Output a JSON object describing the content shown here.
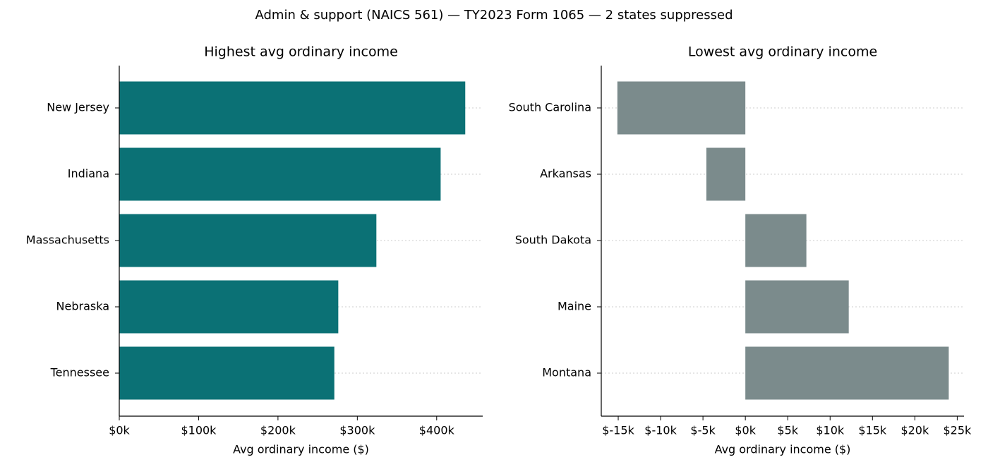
{
  "title": "Admin & support (NAICS 561) — TY2023 Form 1065 — 2 states suppressed",
  "chart_data": [
    {
      "type": "barh",
      "title": "Highest avg ordinary income",
      "xlabel": "Avg ordinary income ($)",
      "categories": [
        "New Jersey",
        "Indiana",
        "Massachusetts",
        "Nebraska",
        "Tennessee"
      ],
      "values": [
        436000,
        405000,
        324000,
        276000,
        271000
      ],
      "color": "#0b7175",
      "xlim": [
        0,
        458000
      ],
      "xticks": [
        {
          "value": 0,
          "label": "$0k"
        },
        {
          "value": 100000,
          "label": "$100k"
        },
        {
          "value": 200000,
          "label": "$200k"
        },
        {
          "value": 300000,
          "label": "$300k"
        },
        {
          "value": 400000,
          "label": "$400k"
        }
      ],
      "grid": true
    },
    {
      "type": "barh",
      "title": "Lowest avg ordinary income",
      "xlabel": "Avg ordinary income ($)",
      "categories": [
        "South Carolina",
        "Arkansas",
        "South Dakota",
        "Maine",
        "Montana"
      ],
      "values": [
        -15100,
        -4600,
        7200,
        12200,
        24000
      ],
      "color": "#7b8b8c",
      "xlim": [
        -17000,
        25800
      ],
      "xticks": [
        {
          "value": -15000,
          "label": "$-15k"
        },
        {
          "value": -10000,
          "label": "$-10k"
        },
        {
          "value": -5000,
          "label": "$-5k"
        },
        {
          "value": 0,
          "label": "$0k"
        },
        {
          "value": 5000,
          "label": "$5k"
        },
        {
          "value": 10000,
          "label": "$10k"
        },
        {
          "value": 15000,
          "label": "$15k"
        },
        {
          "value": 20000,
          "label": "$20k"
        },
        {
          "value": 25000,
          "label": "$25k"
        }
      ],
      "grid": true
    }
  ]
}
